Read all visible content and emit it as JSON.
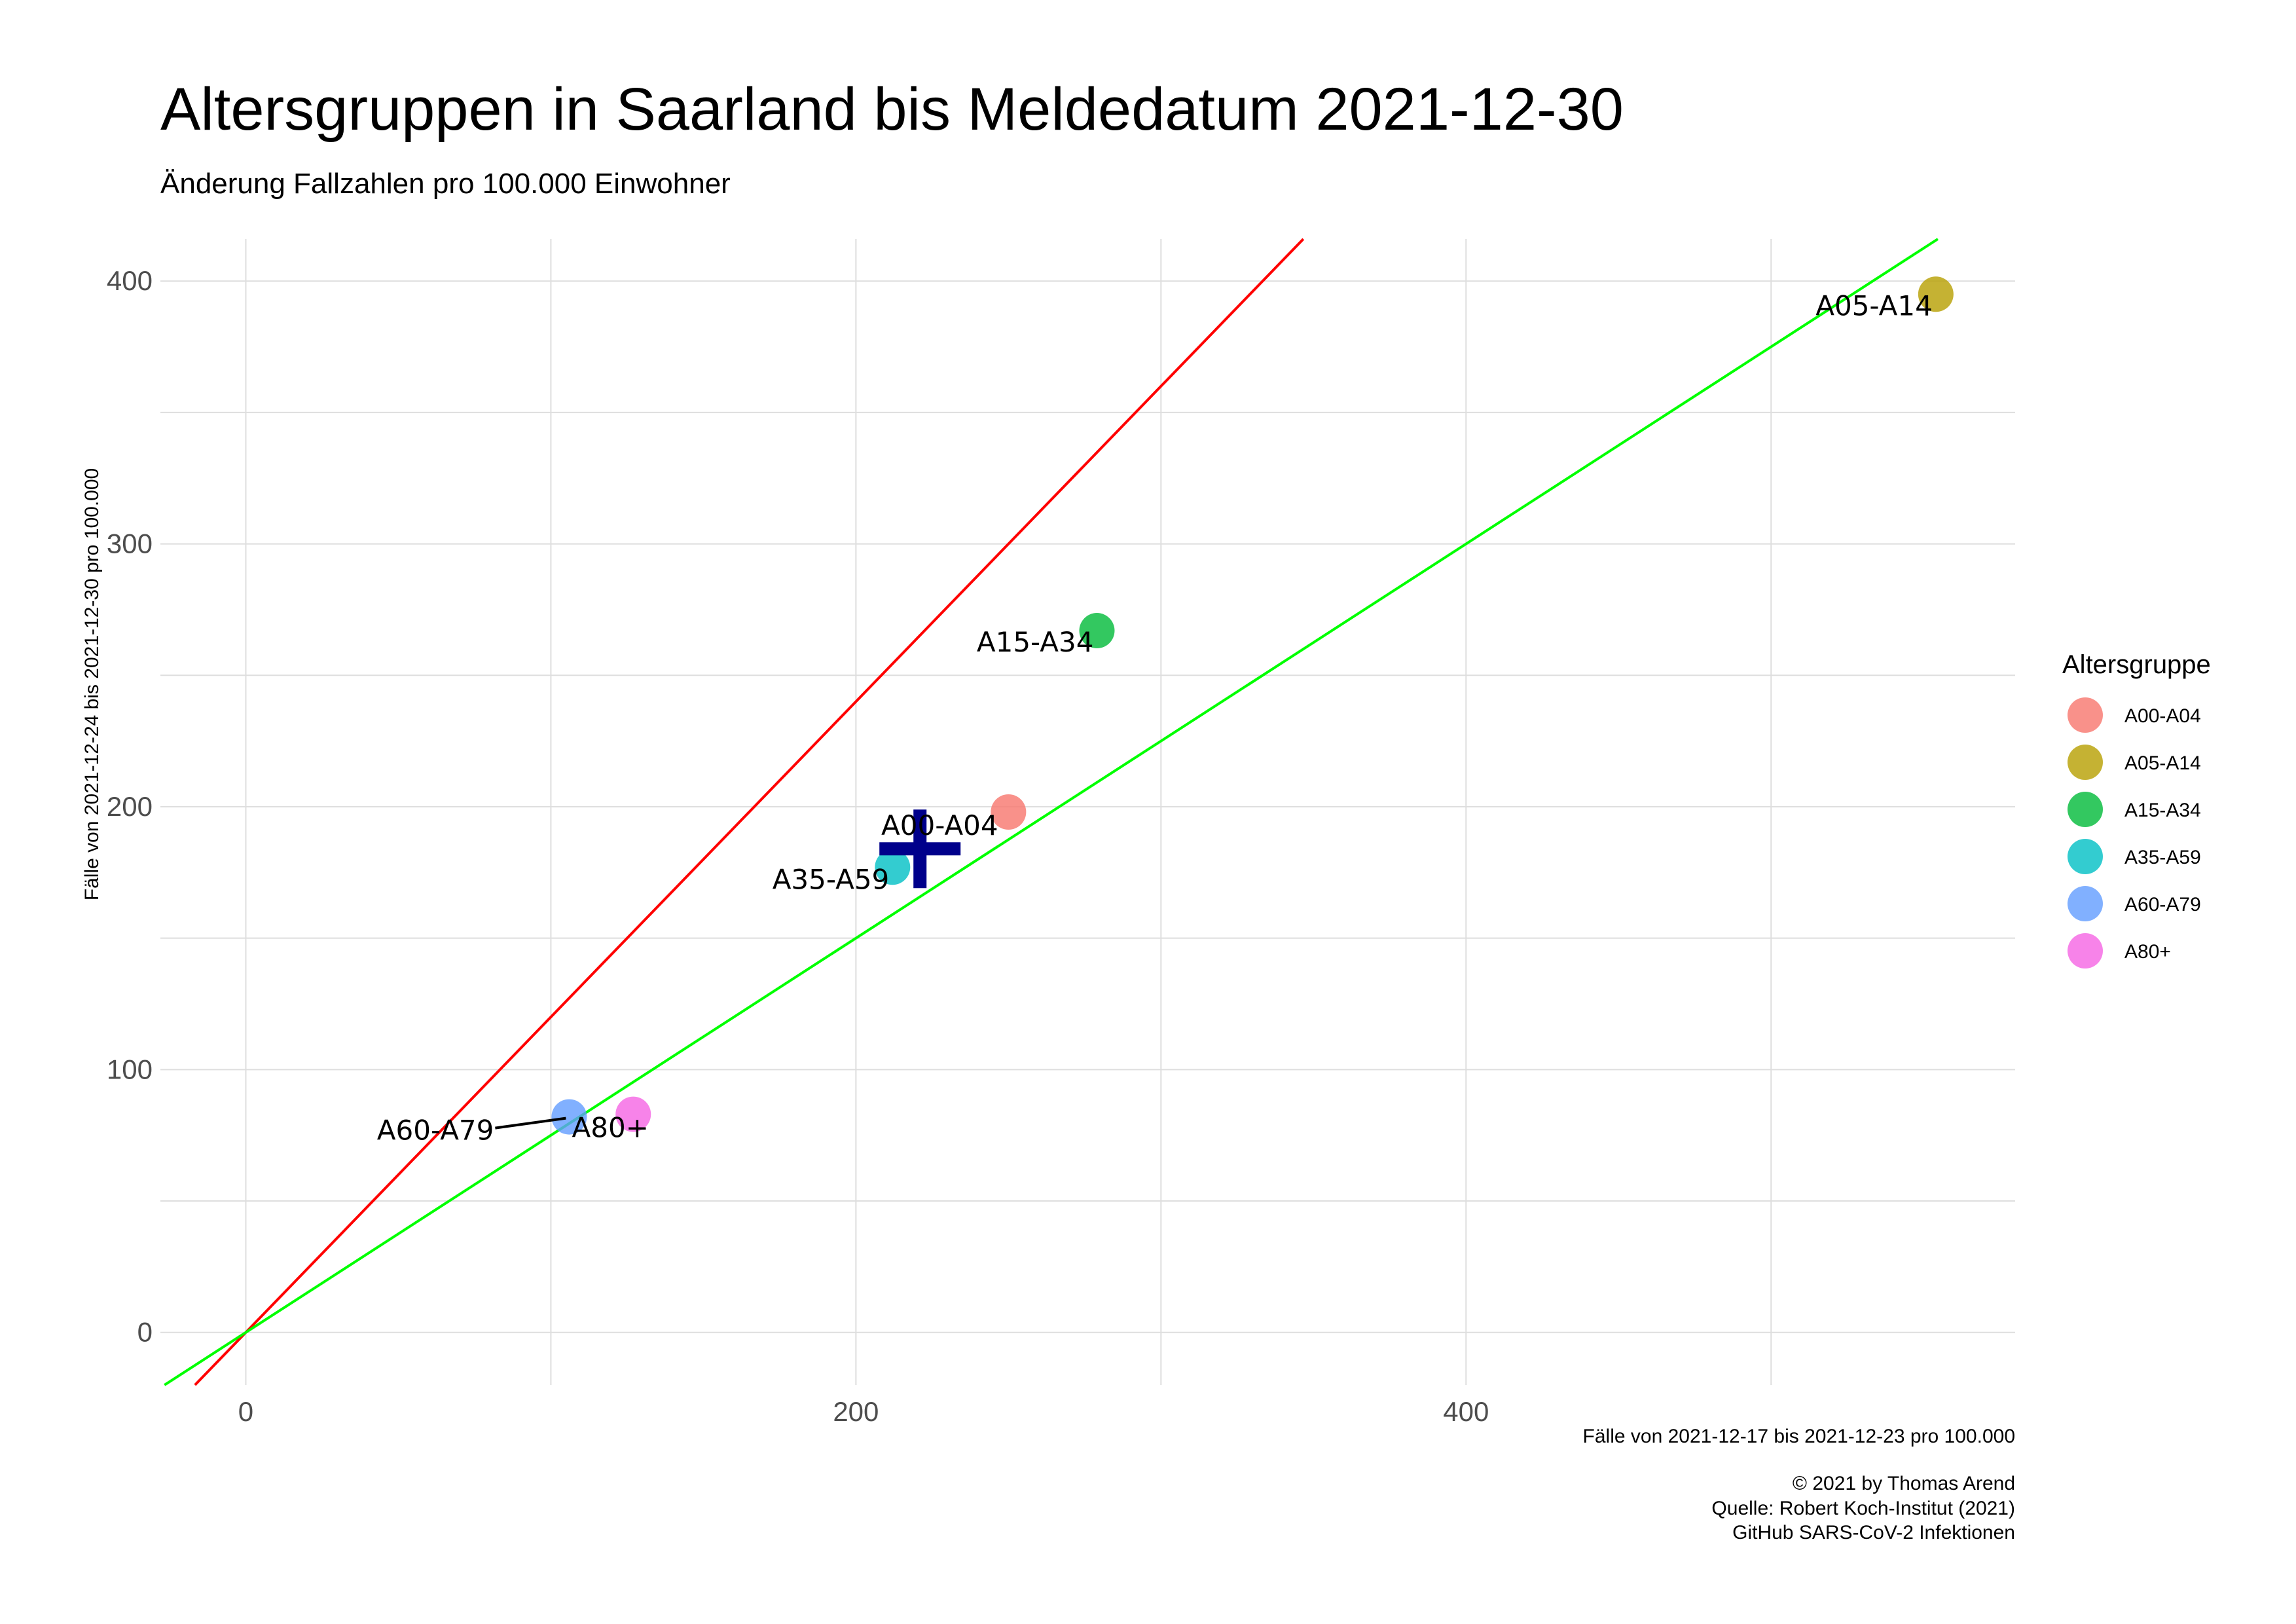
{
  "title": "Altersgruppen in Saarland bis Meldedatum 2021-12-30",
  "subtitle": "Änderung Fallzahlen pro 100.000 Einwohner",
  "caption": [
    "© 2021 by Thomas Arend",
    "Quelle: Robert Koch-Institut (2021)",
    "GitHub SARS-CoV-2 Infektionen"
  ],
  "chart_data": {
    "type": "scatter",
    "xlabel": "Fälle von 2021-12-17 bis 2021-12-23 pro 100.000",
    "ylabel": "Fälle von 2021-12-24 bis 2021-12-30 pro 100.000",
    "xlim": [
      -28,
      580
    ],
    "ylim": [
      -20,
      416
    ],
    "x_ticks": [
      0,
      200,
      400
    ],
    "y_ticks": [
      0,
      100,
      200,
      300,
      400
    ],
    "grid": true,
    "legend_title": "Altersgruppe",
    "legend_position": "right",
    "points": [
      {
        "name": "A00-A04",
        "x": 250,
        "y": 198,
        "color": "#F8766D"
      },
      {
        "name": "A05-A14",
        "x": 554,
        "y": 395,
        "color": "#B79F00"
      },
      {
        "name": "A15-A34",
        "x": 279,
        "y": 267,
        "color": "#00BA38"
      },
      {
        "name": "A35-A59",
        "x": 212,
        "y": 177,
        "color": "#00BFC4"
      },
      {
        "name": "A60-A79",
        "x": 106,
        "y": 82,
        "color": "#619CFF"
      },
      {
        "name": "A80+",
        "x": 127,
        "y": 83,
        "color": "#F564E3"
      }
    ],
    "mean_marker": {
      "x": 221,
      "y": 184,
      "color": "#00008B"
    },
    "reference_lines": [
      {
        "slope": 1.2,
        "intercept": 0,
        "color": "#FF0000"
      },
      {
        "slope": 0.75,
        "intercept": 0,
        "color": "#00FF00"
      }
    ]
  }
}
